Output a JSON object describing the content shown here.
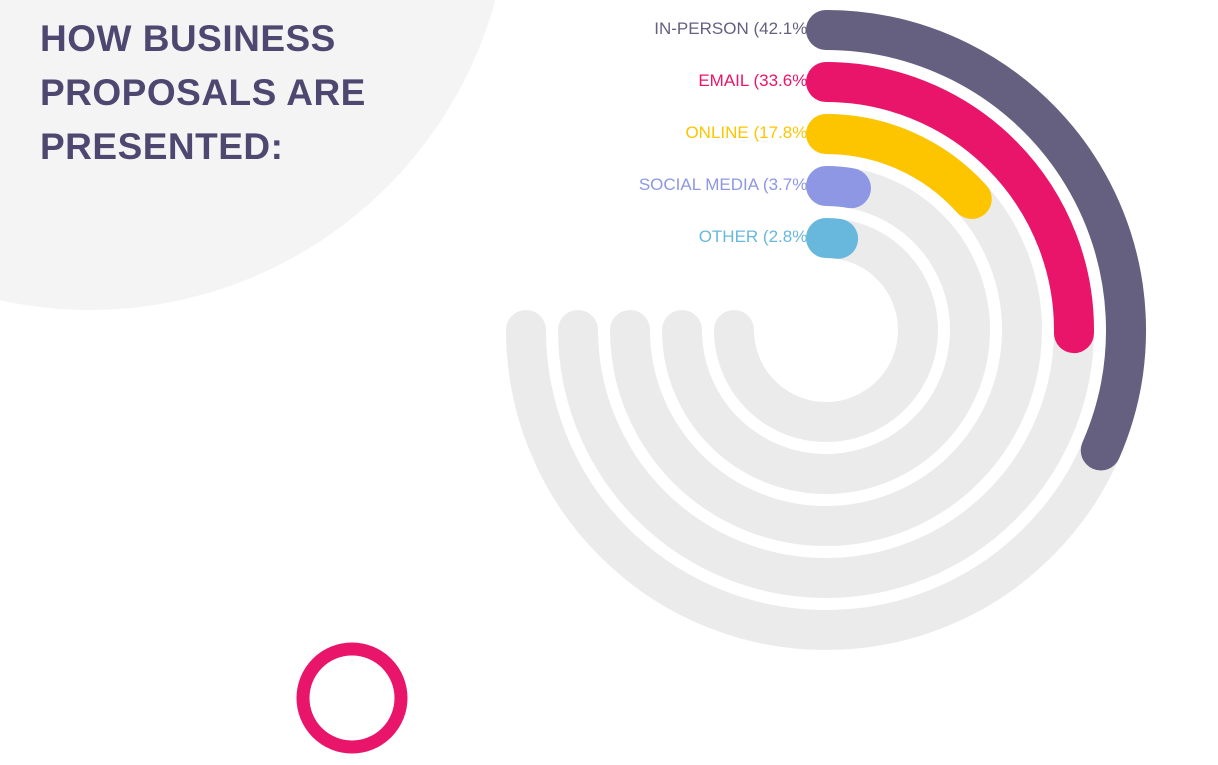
{
  "chart_data": {
    "type": "radial-bar",
    "title": "HOW BUSINESS PROPOSALS ARE PRESENTED:",
    "categories": [
      "IN-PERSON",
      "EMAIL",
      "ONLINE",
      "SOCIAL MEDIA",
      "OTHER"
    ],
    "values": [
      42.1,
      33.6,
      17.8,
      3.7,
      2.8
    ],
    "value_labels": [
      "(42.1%)",
      "(33.6%)",
      "(17.8%)",
      "(3.7%)",
      "(2.8%)"
    ],
    "colors": [
      "#655f80",
      "#e8156a",
      "#fdc500",
      "#8d97e4",
      "#68b8dd"
    ],
    "ylim": [
      0,
      100
    ]
  }
}
